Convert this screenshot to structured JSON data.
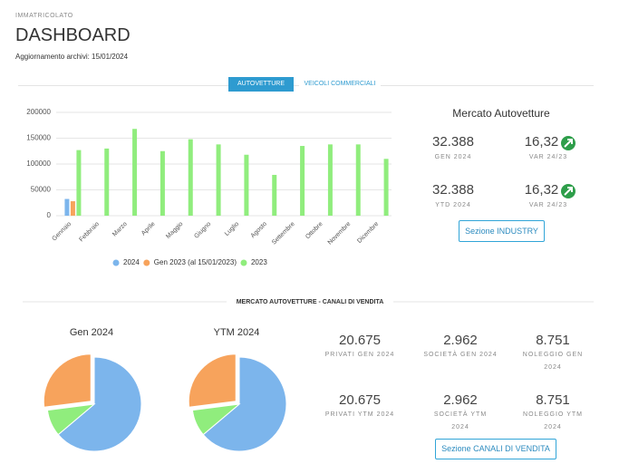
{
  "header": {
    "section": "IMMATRICOLATO",
    "title": "DASHBOARD",
    "updated": "Aggiornamento archivi: 15/01/2024"
  },
  "tabs": [
    "AUTOVETTURE",
    "VEICOLI COMMERCIALI"
  ],
  "chart_data": [
    {
      "type": "bar",
      "categories": [
        "Gennaio",
        "Febbraio",
        "Marzo",
        "Aprile",
        "Maggio",
        "Giugno",
        "Luglio",
        "Agosto",
        "Settembre",
        "Ottobre",
        "Novembre",
        "Dicembre"
      ],
      "series": [
        {
          "name": "2024",
          "color": "#7cb5ec",
          "values": [
            32388,
            null,
            null,
            null,
            null,
            null,
            null,
            null,
            null,
            null,
            null,
            null
          ]
        },
        {
          "name": "Gen 2023 (al 15/01/2023)",
          "color": "#f7a35c",
          "values": [
            28000,
            null,
            null,
            null,
            null,
            null,
            null,
            null,
            null,
            null,
            null,
            null
          ]
        },
        {
          "name": "2023",
          "color": "#90ed7d",
          "values": [
            127000,
            130000,
            168000,
            125000,
            148000,
            138000,
            118000,
            79000,
            135000,
            138000,
            138000,
            110000
          ]
        }
      ],
      "ylim": [
        0,
        200000
      ],
      "yticks": [
        0,
        50000,
        100000,
        150000,
        200000
      ],
      "grid": true
    },
    {
      "type": "pie",
      "title": "Gen 2024",
      "values": [
        20675,
        2962,
        8751
      ],
      "colors": [
        "#7cb5ec",
        "#90ed7d",
        "#f7a35c"
      ]
    },
    {
      "type": "pie",
      "title": "YTM 2024",
      "values": [
        20675,
        2962,
        8751
      ],
      "colors": [
        "#7cb5ec",
        "#90ed7d",
        "#f7a35c"
      ]
    }
  ],
  "market": {
    "title": "Mercato Autovetture",
    "stats": [
      {
        "value": "32.388",
        "label": "GEN 2024"
      },
      {
        "value": "16,32",
        "label": "VAR 24/23"
      },
      {
        "value": "32.388",
        "label": "YTD 2024"
      },
      {
        "value": "16,32",
        "label": "VAR 24/23"
      }
    ],
    "button": "Sezione INDUSTRY"
  },
  "channels": {
    "title": "MERCATO AUTOVETTURE - CANALI DI VENDITA",
    "stats": [
      {
        "value": "20.675",
        "label": "PRIVATI GEN 2024"
      },
      {
        "value": "2.962",
        "label": "SOCIETÀ GEN 2024"
      },
      {
        "value": "8.751",
        "label": "NOLEGGIO GEN 2024"
      },
      {
        "value": "20.675",
        "label": "PRIVATI YTM 2024"
      },
      {
        "value": "2.962",
        "label": "SOCIETÀ YTM 2024"
      },
      {
        "value": "8.751",
        "label": "NOLEGGIO YTM 2024"
      }
    ],
    "button": "Sezione CANALI DI VENDITA"
  }
}
